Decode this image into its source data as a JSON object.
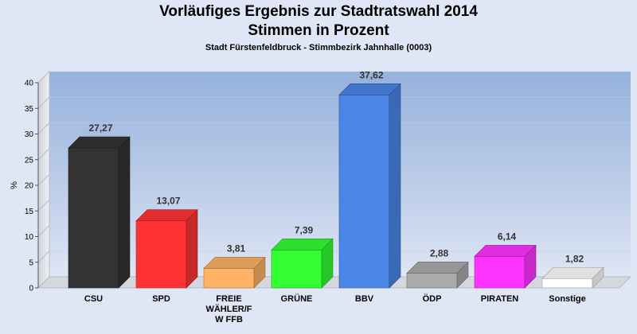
{
  "chart_data": {
    "type": "bar",
    "title": "Vorläufiges Ergebnis zur Stadtratswahl 2014",
    "subtitle": "Stimmen in Prozent",
    "subtitle2": "Stadt Fürstenfeldbruck - Stimmbezirk Jahnhalle (0003)",
    "ylabel": "%",
    "ylim": [
      0,
      40
    ],
    "yticks": [
      "0",
      "5",
      "10",
      "15",
      "20",
      "25",
      "30",
      "35",
      "40"
    ],
    "grid": true,
    "categories": [
      "CSU",
      "SPD",
      "FREIE WÄHLER/FW FFB",
      "GRÜNE",
      "BBV",
      "ÖDP",
      "PIRATEN",
      "Sonstige"
    ],
    "category_lines": [
      [
        "CSU"
      ],
      [
        "SPD"
      ],
      [
        "FREIE",
        "WÄHLER/F",
        "W FFB"
      ],
      [
        "GRÜNE"
      ],
      [
        "BBV"
      ],
      [
        "ÖDP"
      ],
      [
        "PIRATEN"
      ],
      [
        "Sonstige"
      ]
    ],
    "values": [
      27.27,
      13.07,
      3.81,
      7.39,
      37.62,
      2.88,
      6.14,
      1.82
    ],
    "value_labels": [
      "27,27",
      "13,07",
      "3,81",
      "7,39",
      "37,62",
      "2,88",
      "6,14",
      "1,82"
    ],
    "colors": [
      "#333333",
      "#ff3333",
      "#ffb266",
      "#33ff33",
      "#4a86e8",
      "#aaaaaa",
      "#ff33ff",
      "#ffffff"
    ]
  }
}
